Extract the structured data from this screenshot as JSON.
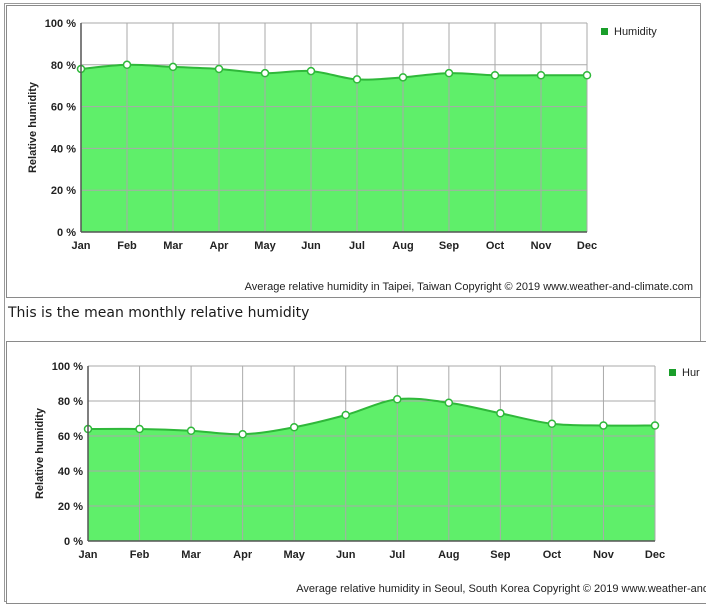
{
  "between_text": "This is the mean monthly relative humidity",
  "colors": {
    "fill": "#5fef6a",
    "line": "#2fb83a",
    "legend_square": "#1a9e2a",
    "grid": "#aaaaaa"
  },
  "chart_data": [
    {
      "type": "area",
      "categories": [
        "Jan",
        "Feb",
        "Mar",
        "Apr",
        "May",
        "Jun",
        "Jul",
        "Aug",
        "Sep",
        "Oct",
        "Nov",
        "Dec"
      ],
      "series": [
        {
          "name": "Humidity",
          "values": [
            78,
            80,
            79,
            78,
            76,
            77,
            73,
            74,
            76,
            75,
            75,
            75
          ]
        }
      ],
      "ylabel": "Relative humidity",
      "ylim": [
        0,
        100
      ],
      "yticks": [
        "0 %",
        "20 %",
        "40 %",
        "60 %",
        "80 %",
        "100 %"
      ],
      "legend_position": "top-right",
      "caption": "Average relative humidity in Taipei, Taiwan",
      "copyright": "Copyright © 2019 www.weather-and-climate.com",
      "grid": true
    },
    {
      "type": "area",
      "categories": [
        "Jan",
        "Feb",
        "Mar",
        "Apr",
        "May",
        "Jun",
        "Jul",
        "Aug",
        "Sep",
        "Oct",
        "Nov",
        "Dec"
      ],
      "series": [
        {
          "name": "Hur",
          "values": [
            64,
            64,
            63,
            61,
            65,
            72,
            81,
            79,
            73,
            67,
            66,
            66
          ]
        }
      ],
      "ylabel": "Relative humidity",
      "ylim": [
        0,
        100
      ],
      "yticks": [
        "0 %",
        "20 %",
        "40 %",
        "60 %",
        "80 %",
        "100 %"
      ],
      "legend_position": "top-right",
      "caption": "Average relative humidity in Seoul, South Korea",
      "copyright": "Copyright © 2019 www.weather-and",
      "grid": true
    }
  ]
}
